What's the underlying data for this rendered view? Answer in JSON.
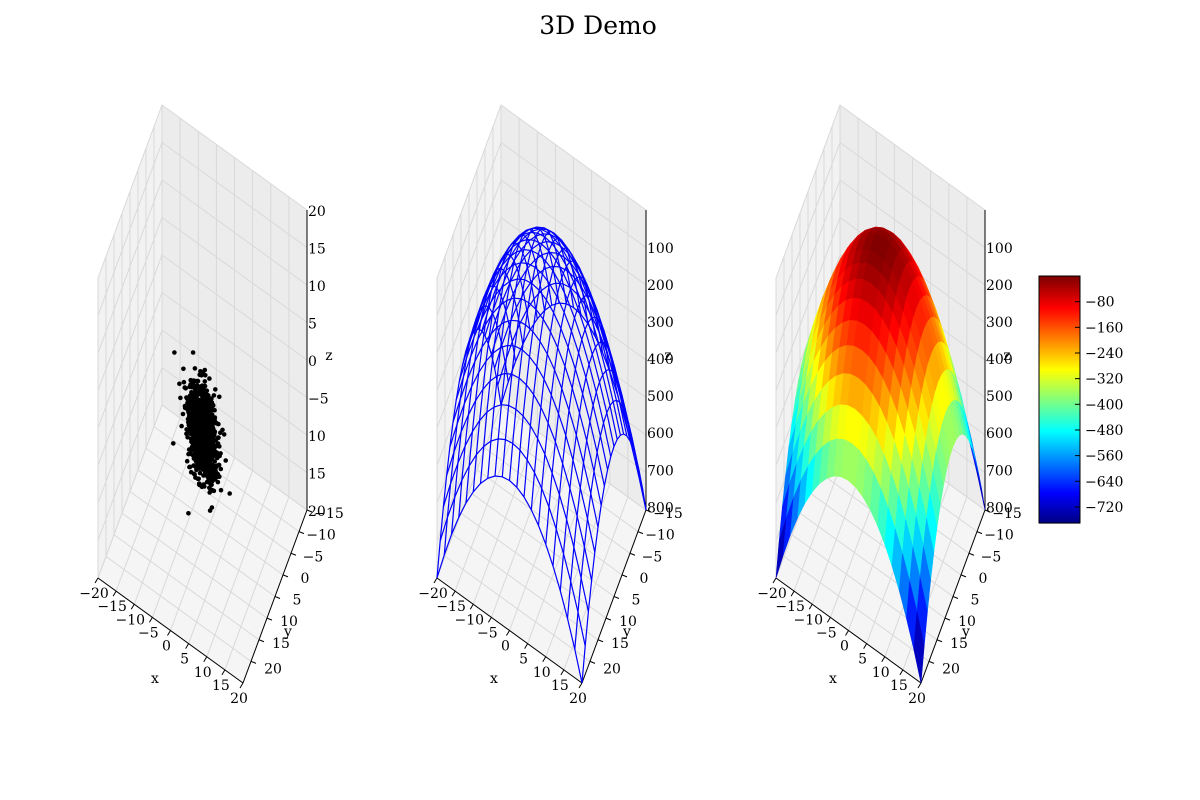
{
  "figure": {
    "title": "3D Demo"
  },
  "chart_data": [
    {
      "type": "scatter",
      "xlabel": "x",
      "ylabel": "y",
      "zlabel": "z",
      "xlim": [
        -20,
        20
      ],
      "ylim": [
        -20,
        20
      ],
      "zlim": [
        -20,
        20
      ],
      "xticks": [
        "−20",
        "−15",
        "−10",
        "−5",
        "0",
        "5",
        "10",
        "15",
        "20"
      ],
      "yticks": [
        "−15",
        "−10",
        "−5",
        "0",
        "5",
        "10",
        "15",
        "20"
      ],
      "zticks": [
        "20",
        "15",
        "10",
        "5",
        "0",
        "−5",
        "10",
        "15",
        "20"
      ],
      "marker_color": "#000000",
      "points": {
        "distribution": "gaussian",
        "count": 1000,
        "center": [
          0,
          0,
          -5
        ],
        "spread": [
          2.5,
          2.5,
          2.5
        ],
        "x_y_correlation": -0.6
      },
      "grid": true
    },
    {
      "type": "wireframe",
      "xlabel": "x",
      "ylabel": "y",
      "zlabel": "z",
      "xlim": [
        -20,
        20
      ],
      "ylim": [
        -20,
        20
      ],
      "zlim": [
        -800,
        0
      ],
      "xticks": [
        "−20",
        "−15",
        "−10",
        "−5",
        "0",
        "5",
        "10",
        "15",
        "20"
      ],
      "yticks": [
        "−15",
        "−10",
        "−5",
        "0",
        "5",
        "10",
        "15",
        "20"
      ],
      "zticks": [
        "100",
        "200",
        "300",
        "400",
        "500",
        "600",
        "700",
        "800"
      ],
      "line_color": "#0000ff",
      "surface": "z = -(x^2 + y^2)",
      "grid": true
    },
    {
      "type": "surface",
      "xlabel": "x",
      "ylabel": "y",
      "zlabel": "z",
      "xlim": [
        -20,
        20
      ],
      "ylim": [
        -20,
        20
      ],
      "zlim": [
        -800,
        0
      ],
      "xticks": [
        "−20",
        "−15",
        "−10",
        "−5",
        "0",
        "5",
        "10",
        "15",
        "20"
      ],
      "yticks": [
        "−15",
        "−10",
        "−5",
        "0",
        "5",
        "10",
        "15",
        "20"
      ],
      "zticks": [
        "100",
        "200",
        "300",
        "400",
        "500",
        "600",
        "700",
        "800"
      ],
      "colormap": "jet",
      "surface": "z = -(x^2 + y^2)",
      "colorbar": {
        "range": [
          -770,
          0
        ],
        "ticks": [
          "−80",
          "−160",
          "−240",
          "−320",
          "−400",
          "−480",
          "−560",
          "−640",
          "−720"
        ]
      },
      "grid": true
    }
  ]
}
